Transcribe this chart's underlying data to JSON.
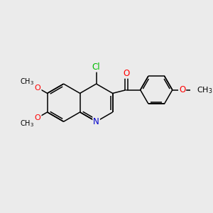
{
  "background_color": "#ebebeb",
  "bond_color": "#000000",
  "atom_colors": {
    "N": "#0000cc",
    "O": "#ff0000",
    "Cl": "#00bb00",
    "C": "#000000"
  },
  "font_size": 8.5,
  "figsize": [
    3.0,
    3.0
  ],
  "dpi": 100,
  "lw": 1.1
}
